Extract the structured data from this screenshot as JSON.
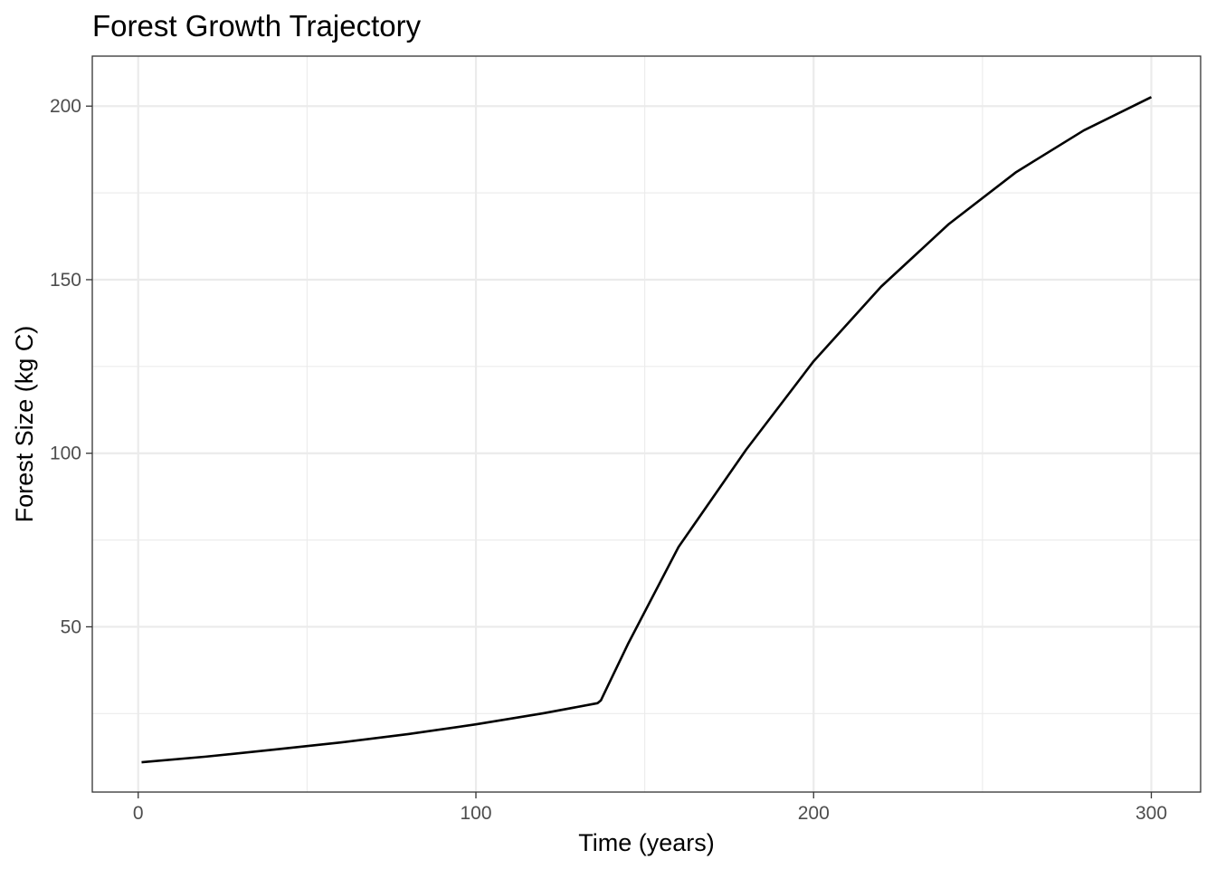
{
  "chart_data": {
    "type": "line",
    "title": "Forest Growth Trajectory",
    "xlabel": "Time (years)",
    "ylabel": "Forest Size (kg C)",
    "xlim": [
      -13.6,
      314.6
    ],
    "ylim": [
      2.4,
      214.4
    ],
    "x_ticks": [
      0,
      100,
      200,
      300
    ],
    "x_tick_labels": [
      "0",
      "100",
      "200",
      "300"
    ],
    "y_ticks": [
      50,
      100,
      150,
      200
    ],
    "y_tick_labels": [
      "50",
      "100",
      "150",
      "200"
    ],
    "grid": true,
    "legend": "none",
    "colors": {
      "line": "#000000",
      "grid": "#ebebeb",
      "panel_border": "#333333",
      "tick_label": "#4d4d4d"
    },
    "series": [
      {
        "x": [
          1,
          20,
          40,
          60,
          80,
          100,
          120,
          136,
          137,
          145,
          160,
          180,
          200,
          220,
          240,
          260,
          280,
          300
        ],
        "values": [
          11.0,
          12.6,
          14.6,
          16.7,
          19.1,
          21.9,
          25.1,
          28.0,
          28.8,
          45.0,
          73.0,
          101.0,
          126.5,
          148.0,
          166.0,
          181.0,
          193.0,
          202.6
        ]
      }
    ]
  }
}
